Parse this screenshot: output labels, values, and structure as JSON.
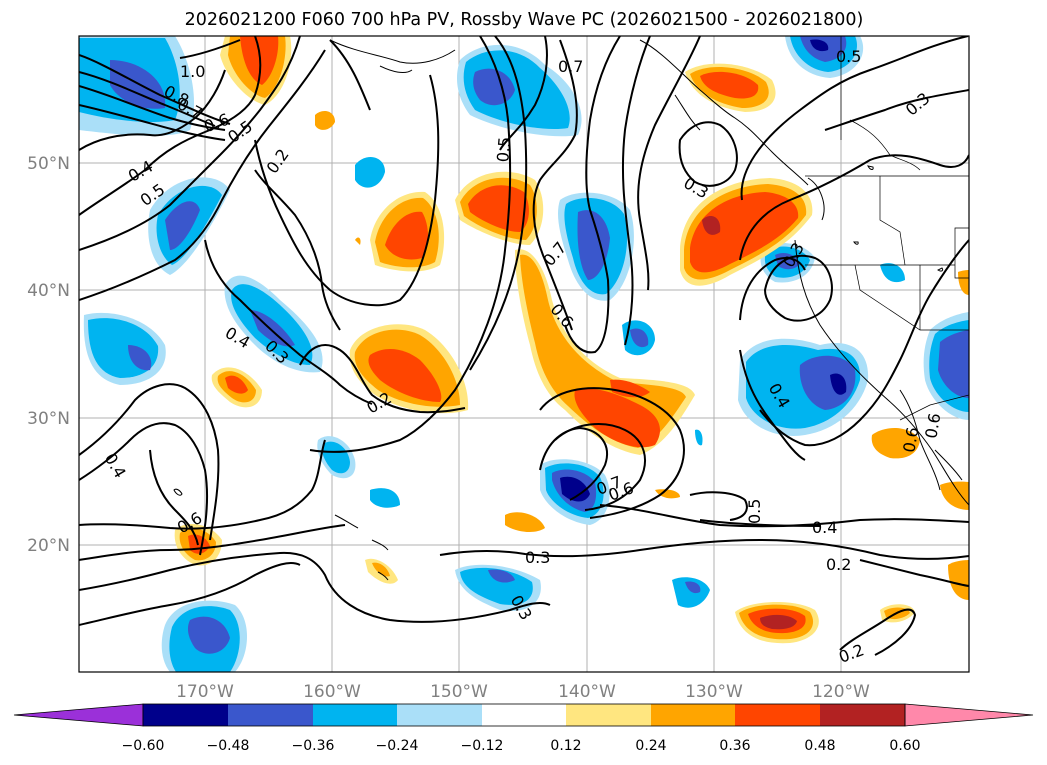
{
  "title": "2026021200 F060 700 hPa PV, Rossby Wave PC (2026021500 - 2026021800)",
  "lat_labels": [
    "50°N",
    "40°N",
    "30°N",
    "20°N"
  ],
  "lon_labels": [
    "170°W",
    "160°W",
    "150°W",
    "140°W",
    "130°W",
    "120°W"
  ],
  "colorbar": {
    "ticks": [
      "−0.60",
      "−0.48",
      "−0.36",
      "−0.24",
      "−0.12",
      "0.12",
      "0.24",
      "0.36",
      "0.48",
      "0.60"
    ],
    "colors": [
      "#9b30d9",
      "#00008b",
      "#3a57cc",
      "#00b4f0",
      "#aadff8",
      "#ffffff",
      "#ffe680",
      "#ffa500",
      "#ff4500",
      "#b22222",
      "#ff88aa"
    ]
  },
  "contour_labels": [
    "1.0",
    "0.8",
    "0.7",
    "0.6",
    "0.5",
    "0.4",
    "0.5",
    "0.2",
    "0.7",
    "0.5",
    "0.5",
    "0.3",
    "0.3",
    "0.7",
    "0.6",
    "0.3",
    "0.4",
    "0.3",
    "0.2",
    "0.4",
    "0.6",
    "0.4",
    "0.7",
    "0.6",
    "0.5",
    "0.4",
    "0.3",
    "0.3",
    "0.2",
    "0.2",
    "0.6",
    "0.6"
  ],
  "colors": {
    "purple": "#9b30d9",
    "navy": "#00008b",
    "royal": "#3a57cc",
    "sky": "#00b4f0",
    "pale_blue": "#aadff8",
    "pale_yellow": "#ffe680",
    "orange": "#ffa500",
    "red_orange": "#ff4500",
    "dark_red": "#b22222",
    "pink": "#ff88aa"
  }
}
